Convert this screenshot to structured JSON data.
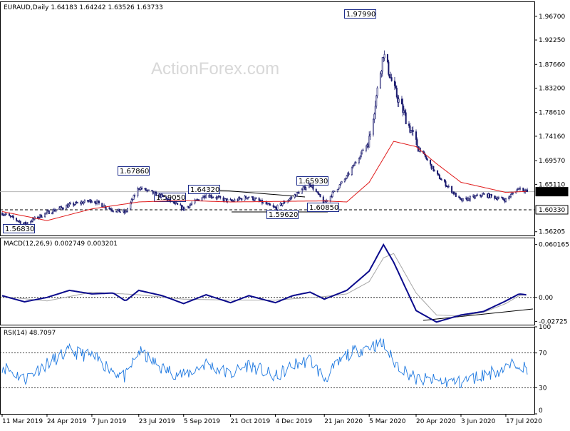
{
  "watermark": "ActionForex.com",
  "colors": {
    "candles": "#1b1b6e",
    "ma": "#e01b1b",
    "macd_line": "#0a0a8c",
    "macd_signal": "#a6a6a6",
    "rsi_line": "#1d78e0",
    "label_box": "#1e2d8c",
    "level_line": "#000000"
  },
  "chart_data": [
    {
      "type": "candlestick",
      "symbol": "EURAUD,Daily",
      "ohlc": {
        "open": "1.64183",
        "high": "1.64242",
        "low": "1.63526",
        "close": "1.63733"
      },
      "header": "EURAUD,Daily  1.64183 1.64242 1.63526 1.63733",
      "ylim": [
        1.555,
        1.995
      ],
      "y_ticks": [
        "1.96700",
        "1.92250",
        "1.87660",
        "1.83200",
        "1.78610",
        "1.74160",
        "1.69570",
        "1.65110",
        "1.56205"
      ],
      "x_ticks": [
        "11 Mar 2019",
        "24 Apr 2019",
        "7 Jun 2019",
        "23 Jul 2019",
        "5 Sep 2019",
        "21 Oct 2019",
        "4 Dec 2019",
        "21 Jan 2020",
        "5 Mar 2020",
        "20 Apr 2020",
        "3 Jun 2020",
        "17 Jul 2020"
      ],
      "current_price": "1.63733",
      "support_level": "1.60330",
      "annotations": [
        "1.97990",
        "1.67860",
        "1.64320",
        "1.65930",
        "1.59050",
        "1.59620",
        "1.60850",
        "1.56830"
      ],
      "close_path": [
        [
          "11 Mar 2019",
          1.597
        ],
        [
          "2 Apr 2019",
          1.577
        ],
        [
          "24 Apr 2019",
          1.598
        ],
        [
          "16 May 2019",
          1.612
        ],
        [
          "7 Jun 2019",
          1.621
        ],
        [
          "28 Jun 2019",
          1.603
        ],
        [
          "10 Jul 2019",
          1.598
        ],
        [
          "23 Jul 2019",
          1.645
        ],
        [
          "15 Aug 2019",
          1.628
        ],
        [
          "5 Sep 2019",
          1.605
        ],
        [
          "27 Sep 2019",
          1.632
        ],
        [
          "21 Oct 2019",
          1.619
        ],
        [
          "8 Nov 2019",
          1.628
        ],
        [
          "4 Dec 2019",
          1.606
        ],
        [
          "21 Dec 2019",
          1.628
        ],
        [
          "7 Jan 2020",
          1.652
        ],
        [
          "21 Jan 2020",
          1.616
        ],
        [
          "12 Feb 2020",
          1.665
        ],
        [
          "5 Mar 2020",
          1.735
        ],
        [
          "19 Mar 2020",
          1.898
        ],
        [
          "29 Mar 2020",
          1.832
        ],
        [
          "20 Apr 2020",
          1.728
        ],
        [
          "10 May 2020",
          1.67
        ],
        [
          "3 Jun 2020",
          1.62
        ],
        [
          "25 Jun 2020",
          1.632
        ],
        [
          "17 Jul 2020",
          1.622
        ],
        [
          "30 Jul 2020",
          1.645
        ],
        [
          "7 Aug 2020",
          1.63733
        ]
      ],
      "ma_path": [
        [
          "11 Mar 2019",
          1.6
        ],
        [
          "24 Apr 2019",
          1.583
        ],
        [
          "7 Jun 2019",
          1.605
        ],
        [
          "23 Jul 2019",
          1.618
        ],
        [
          "5 Sep 2019",
          1.621
        ],
        [
          "21 Oct 2019",
          1.618
        ],
        [
          "4 Dec 2019",
          1.619
        ],
        [
          "21 Jan 2020",
          1.62
        ],
        [
          "12 Feb 2020",
          1.618
        ],
        [
          "5 Mar 2020",
          1.655
        ],
        [
          "29 Mar 2020",
          1.732
        ],
        [
          "20 Apr 2020",
          1.722
        ],
        [
          "10 May 2020",
          1.69
        ],
        [
          "3 Jun 2020",
          1.655
        ],
        [
          "17 Jul 2020",
          1.636
        ],
        [
          "7 Aug 2020",
          1.638
        ]
      ]
    },
    {
      "type": "line",
      "indicator": "MACD(12,26,9) 0.002749 0.003201",
      "header": "MACD(12,26,9) 0.002749 0.003201",
      "ylim": [
        -0.031,
        0.068
      ],
      "y_ticks": [
        "0.060165",
        "0.00",
        "-0.02725"
      ],
      "series": [
        {
          "name": "MACD",
          "values": [
            [
              "11 Mar 2019",
              0.002
            ],
            [
              "2 Apr 2019",
              -0.005
            ],
            [
              "24 Apr 2019",
              0.0
            ],
            [
              "16 May 2019",
              0.008
            ],
            [
              "7 Jun 2019",
              0.004
            ],
            [
              "28 Jun 2019",
              0.005
            ],
            [
              "10 Jul 2019",
              -0.004
            ],
            [
              "23 Jul 2019",
              0.008
            ],
            [
              "15 Aug 2019",
              0.002
            ],
            [
              "5 Sep 2019",
              -0.007
            ],
            [
              "27 Sep 2019",
              0.003
            ],
            [
              "21 Oct 2019",
              -0.006
            ],
            [
              "8 Nov 2019",
              0.002
            ],
            [
              "4 Dec 2019",
              -0.006
            ],
            [
              "21 Dec 2019",
              0.002
            ],
            [
              "7 Jan 2020",
              0.006
            ],
            [
              "21 Jan 2020",
              -0.002
            ],
            [
              "12 Feb 2020",
              0.008
            ],
            [
              "5 Mar 2020",
              0.03
            ],
            [
              "19 Mar 2020",
              0.06
            ],
            [
              "29 Mar 2020",
              0.04
            ],
            [
              "20 Apr 2020",
              -0.015
            ],
            [
              "10 May 2020",
              -0.028
            ],
            [
              "3 Jun 2020",
              -0.02
            ],
            [
              "25 Jun 2020",
              -0.016
            ],
            [
              "17 Jul 2020",
              -0.004
            ],
            [
              "30 Jul 2020",
              0.004
            ],
            [
              "7 Aug 2020",
              0.002749
            ]
          ]
        },
        {
          "name": "Signal",
          "values": [
            [
              "11 Mar 2019",
              0.001
            ],
            [
              "24 Apr 2019",
              -0.004
            ],
            [
              "7 Jun 2019",
              0.006
            ],
            [
              "23 Jul 2019",
              0.003
            ],
            [
              "5 Sep 2019",
              -0.002
            ],
            [
              "21 Oct 2019",
              -0.003
            ],
            [
              "4 Dec 2019",
              -0.003
            ],
            [
              "21 Jan 2020",
              0.001
            ],
            [
              "12 Feb 2020",
              0.004
            ],
            [
              "5 Mar 2020",
              0.018
            ],
            [
              "19 Mar 2020",
              0.045
            ],
            [
              "29 Mar 2020",
              0.05
            ],
            [
              "20 Apr 2020",
              0.005
            ],
            [
              "10 May 2020",
              -0.02
            ],
            [
              "3 Jun 2020",
              -0.021
            ],
            [
              "25 Jun 2020",
              -0.017
            ],
            [
              "17 Jul 2020",
              -0.007
            ],
            [
              "30 Jul 2020",
              0.002
            ],
            [
              "7 Aug 2020",
              0.003201
            ]
          ]
        }
      ]
    },
    {
      "type": "line",
      "indicator": "RSI(14) 48.7097",
      "header": "RSI(14) 48.7097",
      "ylim": [
        0,
        100
      ],
      "y_ticks": [
        "100",
        "70",
        "30",
        "0"
      ],
      "levels": [
        70,
        30
      ],
      "series": [
        {
          "name": "RSI",
          "values": [
            [
              "11 Mar 2019",
              55
            ],
            [
              "2 Apr 2019",
              40
            ],
            [
              "24 Apr 2019",
              58
            ],
            [
              "16 May 2019",
              72
            ],
            [
              "7 Jun 2019",
              66
            ],
            [
              "28 Jun 2019",
              50
            ],
            [
              "10 Jul 2019",
              42
            ],
            [
              "23 Jul 2019",
              72
            ],
            [
              "15 Aug 2019",
              52
            ],
            [
              "5 Sep 2019",
              44
            ],
            [
              "27 Sep 2019",
              58
            ],
            [
              "21 Oct 2019",
              45
            ],
            [
              "8 Nov 2019",
              57
            ],
            [
              "4 Dec 2019",
              42
            ],
            [
              "21 Dec 2019",
              56
            ],
            [
              "7 Jan 2020",
              62
            ],
            [
              "21 Jan 2020",
              40
            ],
            [
              "12 Feb 2020",
              68
            ],
            [
              "5 Mar 2020",
              78
            ],
            [
              "19 Mar 2020",
              80
            ],
            [
              "29 Mar 2020",
              60
            ],
            [
              "20 Apr 2020",
              40
            ],
            [
              "10 May 2020",
              38
            ],
            [
              "3 Jun 2020",
              36
            ],
            [
              "25 Jun 2020",
              45
            ],
            [
              "17 Jul 2020",
              52
            ],
            [
              "30 Jul 2020",
              60
            ],
            [
              "7 Aug 2020",
              48.7097
            ]
          ]
        }
      ]
    }
  ]
}
